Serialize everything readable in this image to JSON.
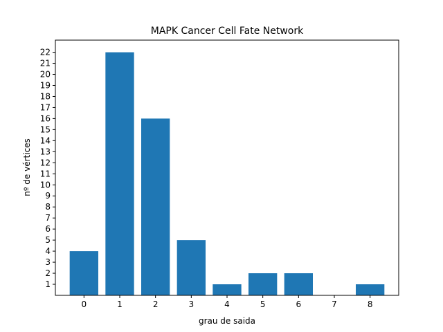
{
  "chart_data": {
    "type": "bar",
    "title": "MAPK Cancer Cell Fate Network",
    "xlabel": "grau de saida",
    "ylabel": "nº de vértices",
    "categories": [
      "0",
      "1",
      "2",
      "3",
      "4",
      "5",
      "6",
      "7",
      "8"
    ],
    "x": [
      0,
      1,
      2,
      3,
      4,
      5,
      6,
      7,
      8
    ],
    "values": [
      4,
      22,
      16,
      5,
      1,
      2,
      2,
      0,
      1
    ],
    "yticks": [
      1,
      2,
      3,
      4,
      5,
      6,
      7,
      8,
      9,
      10,
      11,
      12,
      13,
      14,
      15,
      16,
      17,
      18,
      19,
      20,
      21,
      22
    ],
    "xlim": [
      -0.8,
      8.8
    ],
    "ylim": [
      0,
      23.1
    ],
    "bar_color": "#1f77b4",
    "grid": false,
    "legend": "none"
  }
}
